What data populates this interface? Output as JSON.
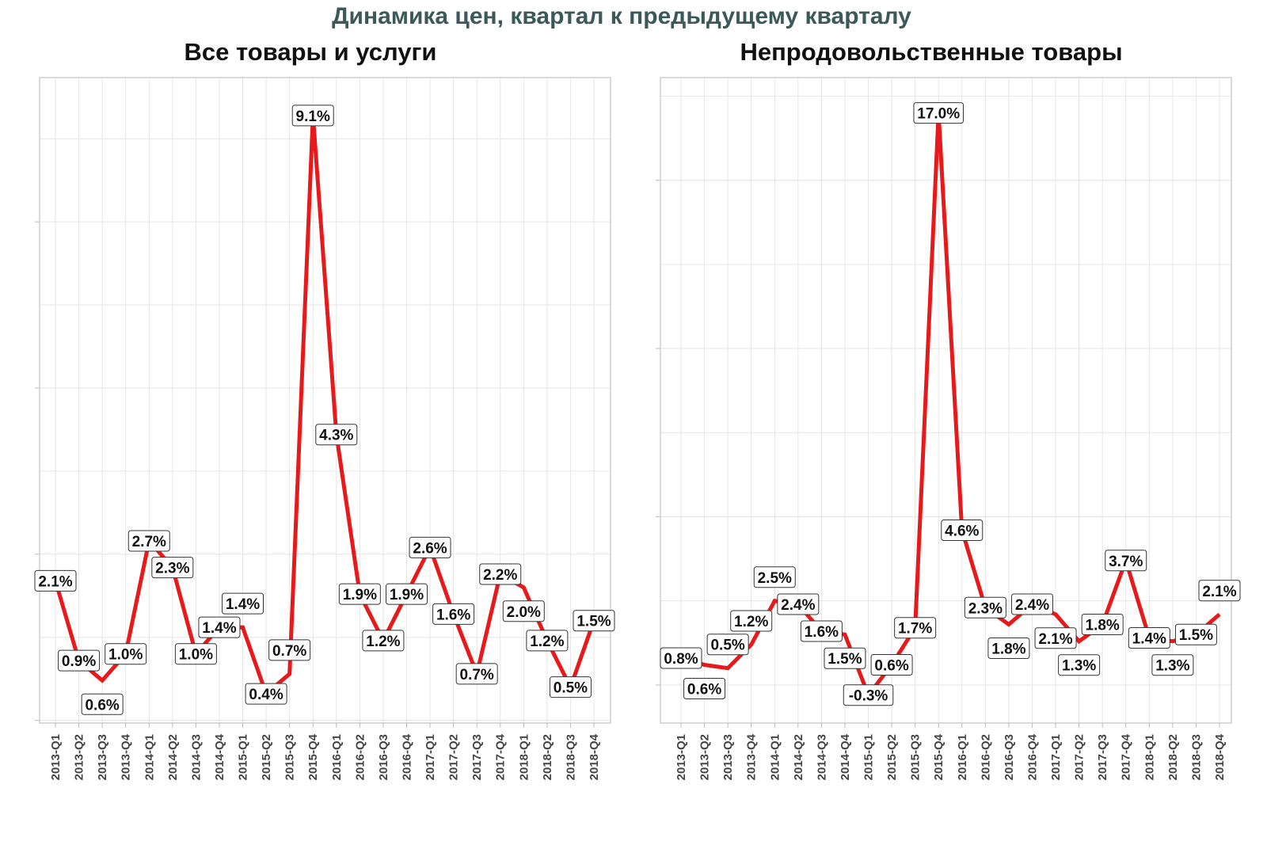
{
  "title": "Динамика цен, квартал к предыдущему кварталу",
  "chart_data": [
    {
      "type": "line",
      "title": "Все товары и услуги",
      "categories": [
        "2013-Q1",
        "2013-Q2",
        "2013-Q3",
        "2013-Q4",
        "2014-Q1",
        "2014-Q2",
        "2014-Q3",
        "2014-Q4",
        "2015-Q1",
        "2015-Q2",
        "2015-Q3",
        "2015-Q4",
        "2016-Q1",
        "2016-Q2",
        "2016-Q3",
        "2016-Q4",
        "2017-Q1",
        "2017-Q2",
        "2017-Q3",
        "2017-Q4",
        "2018-Q1",
        "2018-Q2",
        "2018-Q3",
        "2018-Q4"
      ],
      "values": [
        2.1,
        0.9,
        0.6,
        1.0,
        2.7,
        2.3,
        1.0,
        1.4,
        1.4,
        0.4,
        0.7,
        9.1,
        4.3,
        1.9,
        1.2,
        1.9,
        2.6,
        1.6,
        0.7,
        2.2,
        2.0,
        1.2,
        0.5,
        1.5
      ],
      "labels": [
        "2.1%",
        "0.9%",
        "0.6%",
        "1.0%",
        "2.7%",
        "2.3%",
        "1.0%",
        "1.4%",
        "1.4%",
        "0.4%",
        "0.7%",
        "9.1%",
        "4.3%",
        "1.9%",
        "1.2%",
        "1.9%",
        "2.6%",
        "1.6%",
        "0.7%",
        "2.2%",
        "2.0%",
        "1.2%",
        "0.5%",
        "1.5%"
      ],
      "ylim": [
        -0.04,
        9.67
      ],
      "major_gridlines": [
        0,
        2.5,
        5,
        7.5
      ],
      "grid": true,
      "line_color": "#e8191a",
      "xlabel": "",
      "ylabel": ""
    },
    {
      "type": "line",
      "title": "Непродовольственные товары",
      "categories": [
        "2013-Q1",
        "2013-Q2",
        "2013-Q3",
        "2013-Q4",
        "2014-Q1",
        "2014-Q2",
        "2014-Q3",
        "2014-Q4",
        "2015-Q1",
        "2015-Q2",
        "2015-Q3",
        "2015-Q4",
        "2016-Q1",
        "2016-Q2",
        "2016-Q3",
        "2016-Q4",
        "2017-Q1",
        "2017-Q2",
        "2017-Q3",
        "2017-Q4",
        "2018-Q1",
        "2018-Q2",
        "2018-Q3",
        "2018-Q4"
      ],
      "values": [
        0.8,
        0.6,
        0.5,
        1.2,
        2.5,
        2.4,
        1.6,
        1.5,
        -0.3,
        0.6,
        1.7,
        17.0,
        4.6,
        2.3,
        1.8,
        2.4,
        2.1,
        1.3,
        1.8,
        3.7,
        1.4,
        1.3,
        1.5,
        2.1
      ],
      "labels": [
        "0.8%",
        "0.6%",
        "0.5%",
        "1.2%",
        "2.5%",
        "2.4%",
        "1.6%",
        "1.5%",
        "-0.3%",
        "0.6%",
        "1.7%",
        "17.0%",
        "4.6%",
        "2.3%",
        "1.8%",
        "2.4%",
        "2.1%",
        "1.3%",
        "1.8%",
        "3.7%",
        "1.4%",
        "1.3%",
        "1.5%",
        "2.1%"
      ],
      "ylim": [
        -1.13,
        18.05
      ],
      "major_gridlines": [
        0,
        5,
        10,
        15
      ],
      "grid": true,
      "line_color": "#e8191a",
      "xlabel": "",
      "ylabel": ""
    }
  ]
}
